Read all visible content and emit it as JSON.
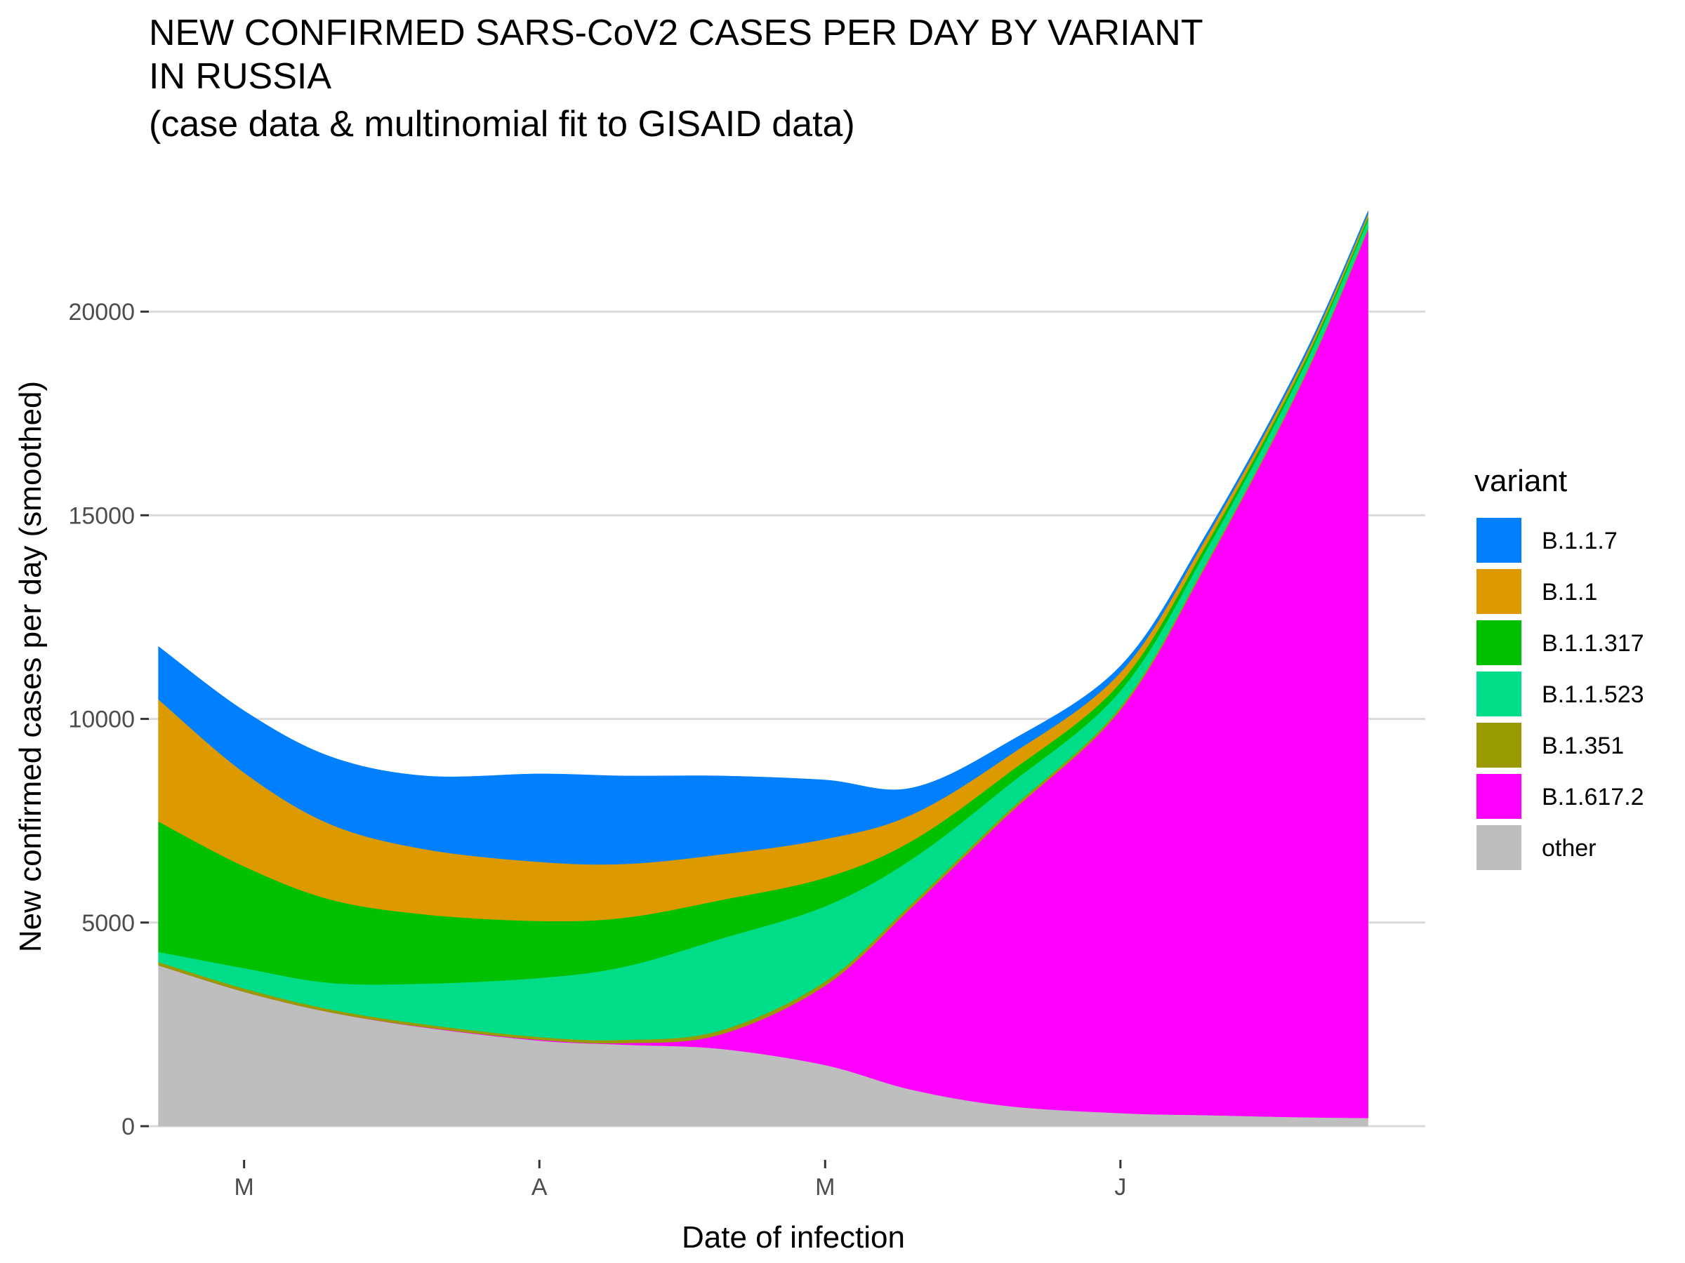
{
  "chart_data": {
    "type": "area",
    "stacked": true,
    "title": [
      "NEW CONFIRMED SARS-CoV2 CASES PER DAY BY VARIANT",
      "IN RUSSIA",
      "(case data & multinomial fit to GISAID data)"
    ],
    "xlabel": "Date of infection",
    "ylabel": "New confirmed cases per day (smoothed)",
    "x_tick_labels": [
      "M",
      "A",
      "M",
      "J"
    ],
    "x_tick_dates": [
      "2021-03-01",
      "2021-04-01",
      "2021-05-01",
      "2021-06-01"
    ],
    "y_ticks": [
      0,
      5000,
      10000,
      15000,
      20000
    ],
    "ylim": [
      0,
      23000
    ],
    "xlim": [
      "2021-02-19",
      "2021-07-03"
    ],
    "legend_title": "variant",
    "legend_position": "right",
    "grid": "horizontal major lines",
    "x": [
      "2021-02-20",
      "2021-03-01",
      "2021-03-10",
      "2021-03-20",
      "2021-04-01",
      "2021-04-10",
      "2021-04-20",
      "2021-05-01",
      "2021-05-10",
      "2021-05-20",
      "2021-06-01",
      "2021-06-10",
      "2021-06-20",
      "2021-06-27"
    ],
    "series": [
      {
        "name": "other",
        "color": "#bebebe",
        "values": [
          3950,
          3300,
          2800,
          2420,
          2100,
          2000,
          1900,
          1500,
          900,
          500,
          320,
          270,
          220,
          200
        ]
      },
      {
        "name": "B.1.617.2",
        "color": "#ff00ff",
        "values": [
          0,
          0,
          0,
          10,
          20,
          40,
          350,
          1950,
          4450,
          7100,
          9900,
          13500,
          18000,
          21800
        ]
      },
      {
        "name": "B.1.351",
        "color": "#999900",
        "values": [
          80,
          80,
          70,
          70,
          70,
          80,
          100,
          100,
          90,
          80,
          70,
          60,
          50,
          50
        ]
      },
      {
        "name": "B.1.1.523",
        "color": "#00dd88",
        "values": [
          250,
          500,
          650,
          1000,
          1450,
          1800,
          2250,
          1850,
          1100,
          650,
          400,
          300,
          250,
          200
        ]
      },
      {
        "name": "B.1.1.317",
        "color": "#00c000",
        "values": [
          3200,
          2500,
          2050,
          1700,
          1400,
          1200,
          950,
          700,
          450,
          300,
          200,
          140,
          90,
          70
        ]
      },
      {
        "name": "B.1.1",
        "color": "#dd9900",
        "values": [
          3000,
          2300,
          1850,
          1600,
          1450,
          1320,
          1120,
          950,
          650,
          420,
          250,
          170,
          110,
          80
        ]
      },
      {
        "name": "B.1.1.7",
        "color": "#0080ff",
        "values": [
          1300,
          1520,
          1660,
          1800,
          2160,
          2160,
          1930,
          1450,
          660,
          350,
          160,
          100,
          80,
          70
        ]
      }
    ],
    "legend_order": [
      "B.1.1.7",
      "B.1.1",
      "B.1.1.317",
      "B.1.1.523",
      "B.1.351",
      "B.1.617.2",
      "other"
    ]
  }
}
